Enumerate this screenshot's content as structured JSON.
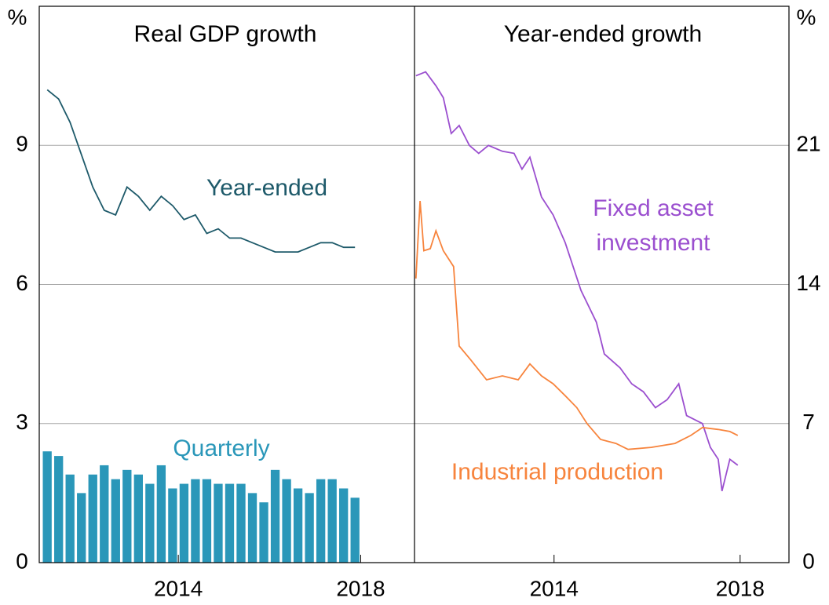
{
  "chart_data": [
    {
      "type": "bar",
      "title": "Real GDP growth",
      "ylabel": "%",
      "xlim": [
        2010.95,
        2019.18
      ],
      "xticks": [
        2014,
        2018
      ],
      "ylim": [
        0,
        12
      ],
      "yticks": [
        0,
        3,
        6,
        9
      ],
      "grid": true,
      "series": [
        {
          "name": "Quarterly",
          "type": "bar",
          "color": "#2a97b9",
          "x": [
            2011.125,
            2011.375,
            2011.625,
            2011.875,
            2012.125,
            2012.375,
            2012.625,
            2012.875,
            2013.125,
            2013.375,
            2013.625,
            2013.875,
            2014.125,
            2014.375,
            2014.625,
            2014.875,
            2015.125,
            2015.375,
            2015.625,
            2015.875,
            2016.125,
            2016.375,
            2016.625,
            2016.875,
            2017.125,
            2017.375,
            2017.625,
            2017.875
          ],
          "values": [
            2.4,
            2.3,
            1.9,
            1.5,
            1.9,
            2.1,
            1.8,
            2.0,
            1.9,
            1.7,
            2.1,
            1.6,
            1.7,
            1.8,
            1.8,
            1.7,
            1.7,
            1.7,
            1.5,
            1.3,
            2.0,
            1.8,
            1.6,
            1.5,
            1.8,
            1.8,
            1.6,
            1.4
          ]
        },
        {
          "name": "Year-ended",
          "type": "line",
          "color": "#1e5a6a",
          "x": [
            2011.125,
            2011.375,
            2011.625,
            2011.875,
            2012.125,
            2012.375,
            2012.625,
            2012.875,
            2013.125,
            2013.375,
            2013.625,
            2013.875,
            2014.125,
            2014.375,
            2014.625,
            2014.875,
            2015.125,
            2015.375,
            2015.625,
            2015.875,
            2016.125,
            2016.375,
            2016.625,
            2016.875,
            2017.125,
            2017.375,
            2017.625,
            2017.875
          ],
          "values": [
            10.2,
            10.0,
            9.5,
            8.8,
            8.1,
            7.6,
            7.5,
            8.1,
            7.9,
            7.6,
            7.9,
            7.7,
            7.4,
            7.5,
            7.1,
            7.2,
            7.0,
            7.0,
            6.9,
            6.8,
            6.7,
            6.7,
            6.7,
            6.8,
            6.9,
            6.9,
            6.8,
            6.8
          ]
        }
      ]
    },
    {
      "type": "line",
      "title": "Year-ended growth",
      "ylabel": "%",
      "xlim": [
        2011,
        2019.05
      ],
      "xticks": [
        2014,
        2018
      ],
      "ylim": [
        0,
        28
      ],
      "yticks": [
        0,
        7,
        14,
        21
      ],
      "grid": true,
      "series": [
        {
          "name": "Fixed asset investment",
          "color": "#9b4fcf",
          "x": [
            2011.03,
            2011.24,
            2011.46,
            2011.62,
            2011.79,
            2011.96,
            2012.18,
            2012.38,
            2012.59,
            2012.89,
            2013.14,
            2013.31,
            2013.48,
            2013.73,
            2013.98,
            2014.24,
            2014.58,
            2014.91,
            2015.08,
            2015.42,
            2015.67,
            2015.92,
            2016.18,
            2016.43,
            2016.68,
            2016.85,
            2017.19,
            2017.36,
            2017.53,
            2017.61,
            2017.78,
            2017.95
          ],
          "values": [
            24.5,
            24.7,
            24.0,
            23.4,
            21.6,
            22.0,
            21.0,
            20.6,
            21.0,
            20.7,
            20.6,
            19.8,
            20.4,
            18.4,
            17.5,
            16.1,
            13.7,
            12.1,
            10.5,
            9.8,
            9.0,
            8.6,
            7.8,
            8.2,
            9.0,
            7.4,
            7.0,
            5.8,
            5.2,
            3.6,
            5.2,
            4.9
          ]
        },
        {
          "name": "Industrial production",
          "color": "#f7843d",
          "x": [
            2011.03,
            2011.12,
            2011.2,
            2011.34,
            2011.46,
            2011.62,
            2011.84,
            2011.96,
            2012.21,
            2012.55,
            2012.89,
            2013.23,
            2013.48,
            2013.73,
            2013.98,
            2014.24,
            2014.49,
            2014.71,
            2015.0,
            2015.33,
            2015.59,
            2016.09,
            2016.6,
            2016.94,
            2017.19,
            2017.53,
            2017.78,
            2017.95
          ],
          "values": [
            14.3,
            18.2,
            15.7,
            15.8,
            16.7,
            15.7,
            14.9,
            10.9,
            10.2,
            9.2,
            9.4,
            9.2,
            10.0,
            9.4,
            9.0,
            8.4,
            7.8,
            7.0,
            6.2,
            6.0,
            5.7,
            5.8,
            6.0,
            6.4,
            6.8,
            6.7,
            6.6,
            6.4
          ]
        }
      ]
    }
  ]
}
